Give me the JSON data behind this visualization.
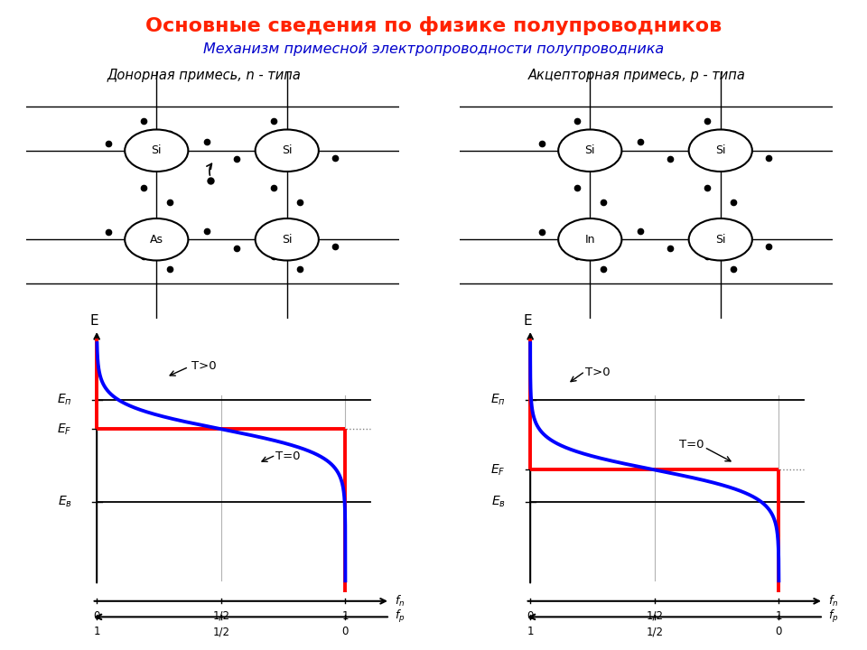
{
  "title": "Основные сведения по физике полупроводников",
  "subtitle": "Механизм примесной электропроводности полупроводника",
  "left_label": "Донорная примесь, n - типа",
  "right_label": "Акцепторная примесь, p - типа",
  "title_color": "#ff2200",
  "subtitle_color": "#0000cc",
  "label_color": "#000000",
  "bg_color": "#ffffff",
  "donor": {
    "E_p": 0.75,
    "E_F": 0.62,
    "E_v": 0.3,
    "kT": 0.055
  },
  "acceptor": {
    "E_p": 0.75,
    "E_F": 0.44,
    "E_v": 0.3,
    "kT": 0.055
  }
}
